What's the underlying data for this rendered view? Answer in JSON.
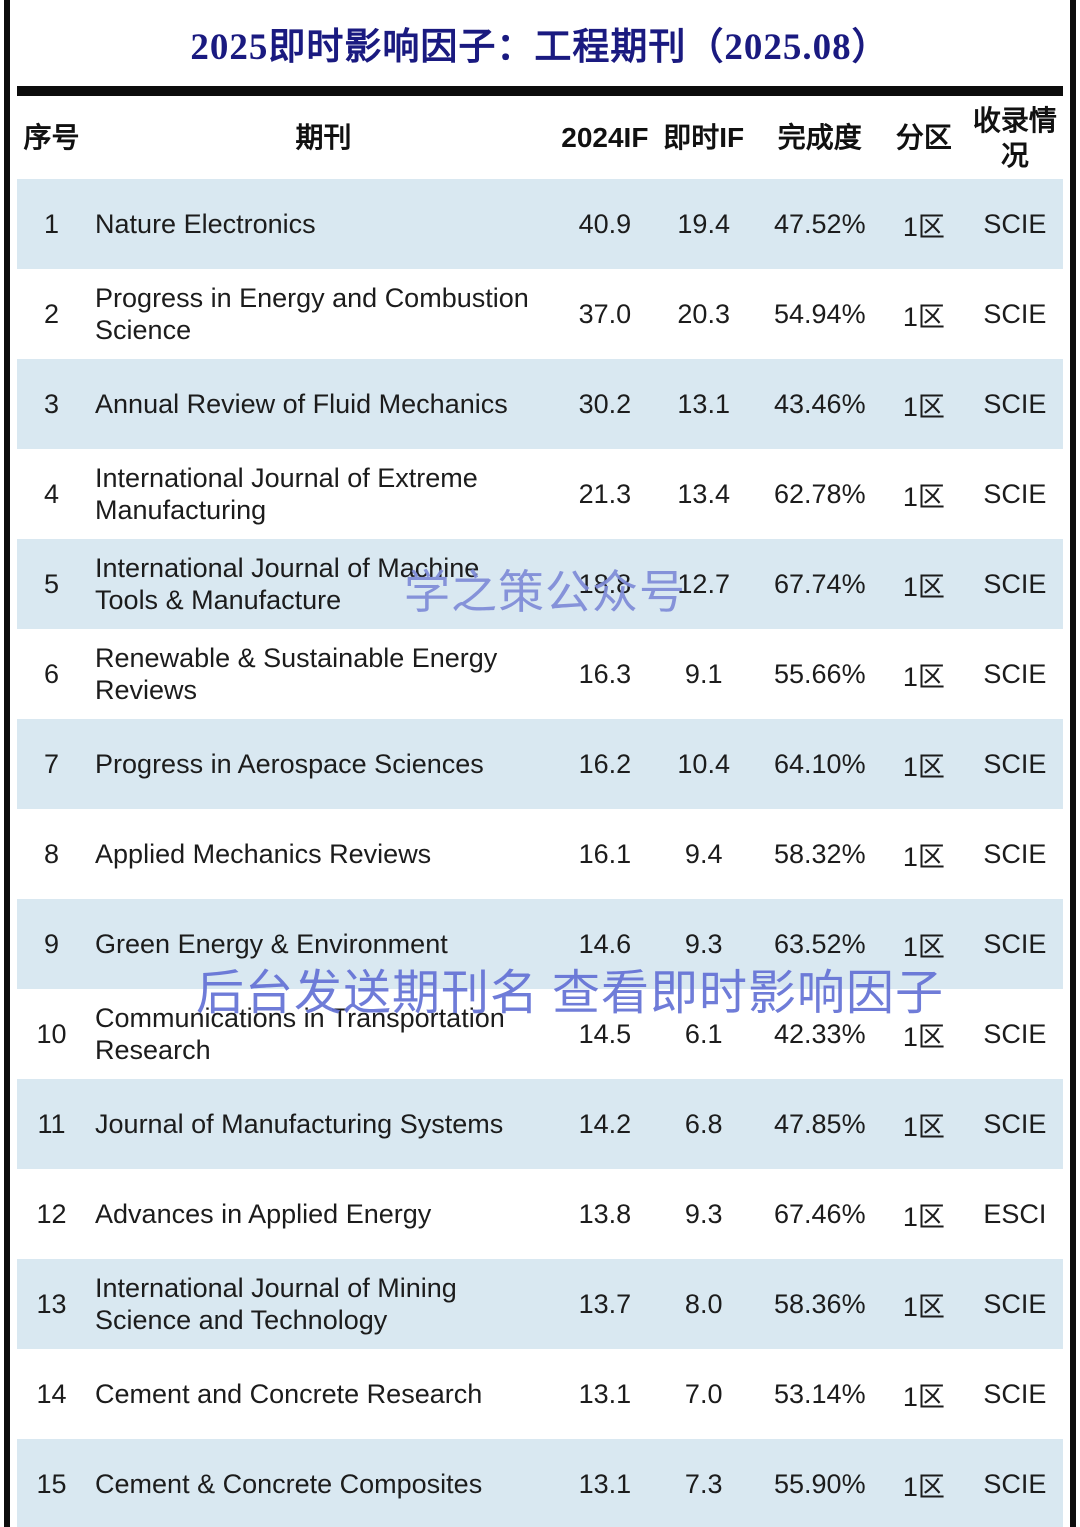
{
  "title": "2025即时影响因子：工程期刊（2025.08）",
  "colors": {
    "title-color": "#1a1a80",
    "row-alt": "#d9e8f1",
    "rule-color": "#0d0d0d",
    "wm1-color": "#7e8bd8",
    "wm2-color": "#6371d5"
  },
  "watermarks": {
    "brand": "学之策公众号",
    "cta": "后台发送期刊名 查看即时影响因子"
  },
  "table": {
    "columns": [
      "序号",
      "期刊",
      "2024IF",
      "即时IF",
      "完成度",
      "分区",
      "收录情况"
    ],
    "rows": [
      {
        "no": "1",
        "journal": "Nature Electronics",
        "if2024": "40.9",
        "rtif": "19.4",
        "completion": "47.52%",
        "zone": "1区",
        "index": "SCIE"
      },
      {
        "no": "2",
        "journal": "Progress in Energy and Combustion Science",
        "if2024": "37.0",
        "rtif": "20.3",
        "completion": "54.94%",
        "zone": "1区",
        "index": "SCIE"
      },
      {
        "no": "3",
        "journal": "Annual Review of Fluid Mechanics",
        "if2024": "30.2",
        "rtif": "13.1",
        "completion": "43.46%",
        "zone": "1区",
        "index": "SCIE"
      },
      {
        "no": "4",
        "journal": "International Journal of Extreme Manufacturing",
        "if2024": "21.3",
        "rtif": "13.4",
        "completion": "62.78%",
        "zone": "1区",
        "index": "SCIE"
      },
      {
        "no": "5",
        "journal": "International Journal of Machine Tools & Manufacture",
        "if2024": "18.8",
        "rtif": "12.7",
        "completion": "67.74%",
        "zone": "1区",
        "index": "SCIE"
      },
      {
        "no": "6",
        "journal": "Renewable & Sustainable Energy Reviews",
        "if2024": "16.3",
        "rtif": "9.1",
        "completion": "55.66%",
        "zone": "1区",
        "index": "SCIE"
      },
      {
        "no": "7",
        "journal": "Progress in Aerospace Sciences",
        "if2024": "16.2",
        "rtif": "10.4",
        "completion": "64.10%",
        "zone": "1区",
        "index": "SCIE"
      },
      {
        "no": "8",
        "journal": "Applied Mechanics Reviews",
        "if2024": "16.1",
        "rtif": "9.4",
        "completion": "58.32%",
        "zone": "1区",
        "index": "SCIE"
      },
      {
        "no": "9",
        "journal": "Green Energy & Environment",
        "if2024": "14.6",
        "rtif": "9.3",
        "completion": "63.52%",
        "zone": "1区",
        "index": "SCIE"
      },
      {
        "no": "10",
        "journal": "Communications in Transportation Research",
        "if2024": "14.5",
        "rtif": "6.1",
        "completion": "42.33%",
        "zone": "1区",
        "index": "SCIE"
      },
      {
        "no": "11",
        "journal": "Journal of Manufacturing Systems",
        "if2024": "14.2",
        "rtif": "6.8",
        "completion": "47.85%",
        "zone": "1区",
        "index": "SCIE"
      },
      {
        "no": "12",
        "journal": "Advances in Applied Energy",
        "if2024": "13.8",
        "rtif": "9.3",
        "completion": "67.46%",
        "zone": "1区",
        "index": "ESCI"
      },
      {
        "no": "13",
        "journal": "International Journal of Mining Science and Technology",
        "if2024": "13.7",
        "rtif": "8.0",
        "completion": "58.36%",
        "zone": "1区",
        "index": "SCIE"
      },
      {
        "no": "14",
        "journal": "Cement and Concrete Research",
        "if2024": "13.1",
        "rtif": "7.0",
        "completion": "53.14%",
        "zone": "1区",
        "index": "SCIE"
      },
      {
        "no": "15",
        "journal": "Cement & Concrete Composites",
        "if2024": "13.1",
        "rtif": "7.3",
        "completion": "55.90%",
        "zone": "1区",
        "index": "SCIE"
      }
    ]
  }
}
